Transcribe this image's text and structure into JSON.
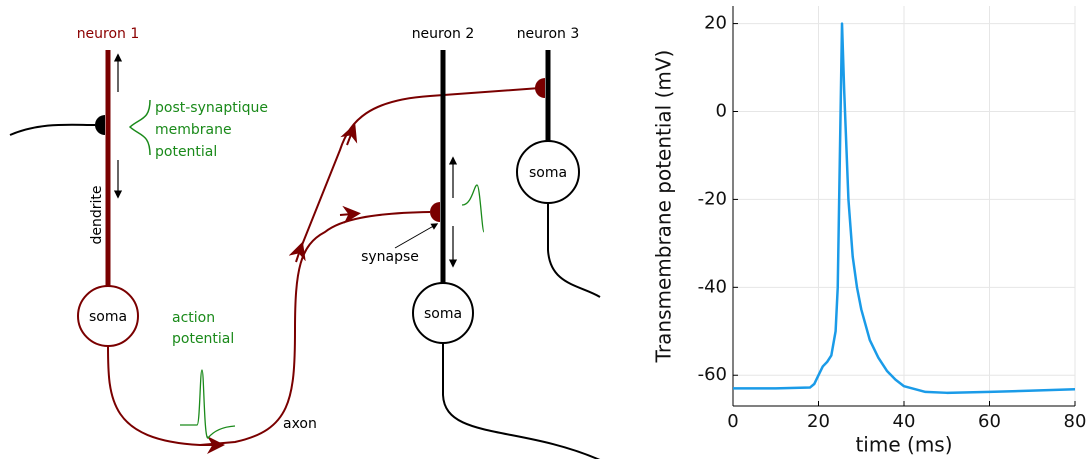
{
  "diagram": {
    "neuron_labels": [
      "neuron 1",
      "neuron 2",
      "neuron 3"
    ],
    "post_synaptic_label": [
      "post-synaptique",
      "membrane",
      "potential"
    ],
    "dendrite_label": "dendrite",
    "soma_labels": [
      "soma",
      "soma",
      "soma"
    ],
    "action_potential_label": [
      "action",
      "potential"
    ],
    "axon_label": "axon",
    "synapse_label": "synapse"
  },
  "chart_data": {
    "type": "line",
    "xlabel": "time (ms)",
    "ylabel": "Transmembrane potential (mV)",
    "x": [
      0,
      10,
      18,
      19,
      20,
      21,
      22,
      23,
      24,
      24.5,
      25,
      25.5,
      26,
      27,
      28,
      29,
      30,
      32,
      34,
      36,
      38,
      40,
      45,
      50,
      60,
      70,
      80
    ],
    "series": [
      {
        "color": "#1a9be8",
        "values": [
          -63,
          -63,
          -62.8,
          -62,
          -60,
          -58,
          -57,
          -55.5,
          -50,
          -40,
          -10,
          20,
          5,
          -20,
          -33,
          -40,
          -45,
          -52,
          -56,
          -59,
          -61,
          -62.5,
          -63.8,
          -64,
          -63.8,
          -63.5,
          -63.2
        ]
      }
    ],
    "xlim": [
      0,
      80
    ],
    "ylim": [
      -67,
      24
    ],
    "xticks": [
      0,
      20,
      40,
      60,
      80
    ],
    "yticks": [
      -60,
      -40,
      -20,
      0,
      20
    ],
    "grid": true
  }
}
